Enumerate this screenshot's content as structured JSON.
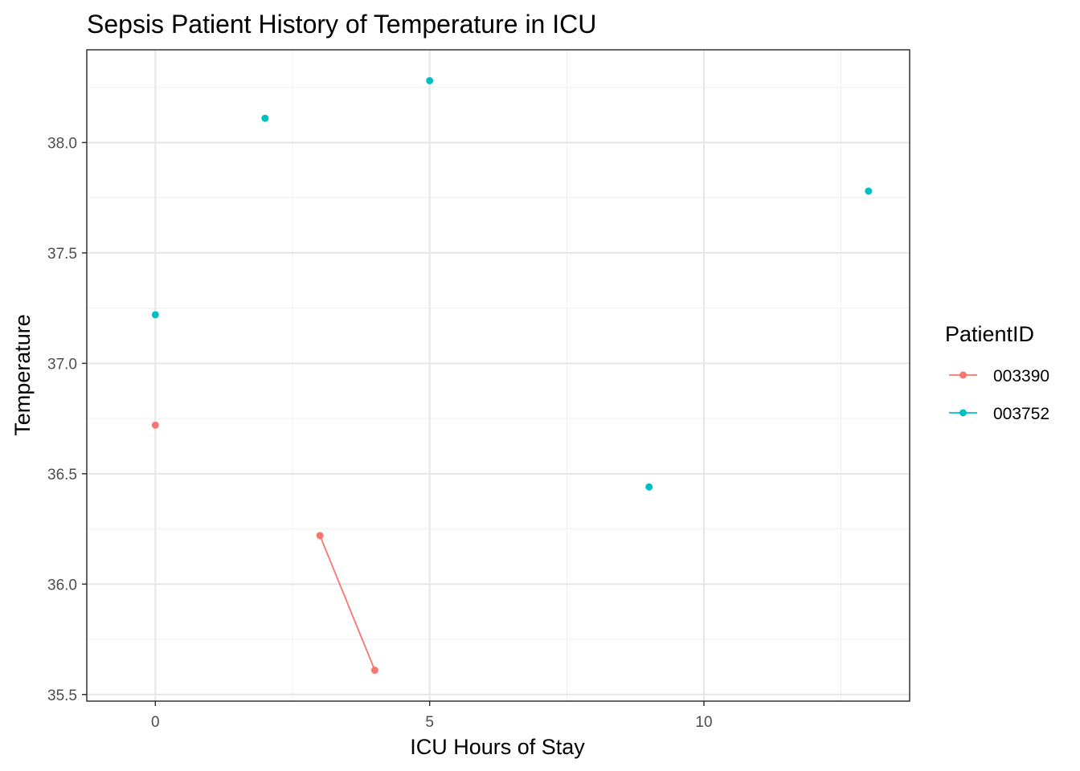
{
  "chart_data": {
    "type": "line",
    "title": "Sepsis Patient History of Temperature in ICU",
    "xlabel": "ICU Hours of Stay",
    "ylabel": "Temperature",
    "xlim": [
      -1.25,
      13.75
    ],
    "ylim": [
      35.47,
      38.42
    ],
    "x_ticks": [
      0,
      5,
      10
    ],
    "x_tick_labels": [
      "0",
      "5",
      "10"
    ],
    "x_minor_ticks": [
      2.5,
      7.5,
      12.5
    ],
    "y_ticks": [
      35.5,
      36.0,
      36.5,
      37.0,
      37.5,
      38.0
    ],
    "y_tick_labels": [
      "35.5",
      "36.0",
      "36.5",
      "37.0",
      "37.5",
      "38.0"
    ],
    "y_minor_ticks": [
      35.75,
      36.25,
      36.75,
      37.25,
      37.75,
      38.25
    ],
    "grid": true,
    "legend": {
      "title": "PatientID",
      "placement": "right"
    },
    "series": [
      {
        "name": "003390",
        "color": "#F8766D",
        "points": [
          {
            "x": 0,
            "y": 36.72
          },
          {
            "x": 3,
            "y": 36.22
          },
          {
            "x": 4,
            "y": 35.61
          }
        ],
        "line_segments": [
          [
            {
              "x": 3,
              "y": 36.22
            },
            {
              "x": 4,
              "y": 35.61
            }
          ]
        ]
      },
      {
        "name": "003752",
        "color": "#00BFC4",
        "points": [
          {
            "x": 0,
            "y": 37.22
          },
          {
            "x": 2,
            "y": 38.11
          },
          {
            "x": 5,
            "y": 38.28
          },
          {
            "x": 9,
            "y": 36.44
          },
          {
            "x": 13,
            "y": 37.78
          }
        ],
        "line_segments": []
      }
    ]
  }
}
